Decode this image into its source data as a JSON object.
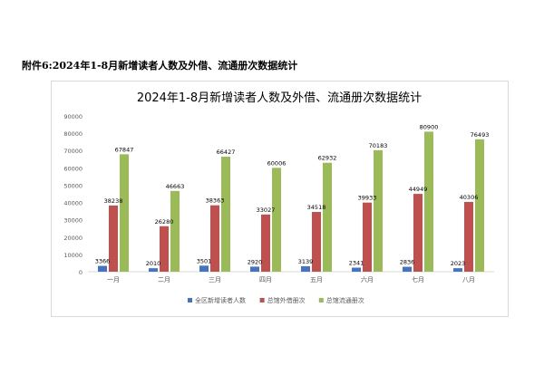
{
  "caption": "附件6:2024年1-8月新增读者人数及外借、流通册次数据统计",
  "chart_data": {
    "type": "bar",
    "title": "2024年1-8月新增读者人数及外借、流通册次数据统计",
    "categories": [
      "一月",
      "二月",
      "三月",
      "四月",
      "五月",
      "六月",
      "七月",
      "八月"
    ],
    "series": [
      {
        "name": "全区新增读者人数",
        "color": "#4472c4",
        "values": [
          3366,
          2010,
          3501,
          2920,
          3139,
          2341,
          2836,
          2023
        ]
      },
      {
        "name": "总馆外借册次",
        "color": "#c0504d",
        "values": [
          38238,
          26280,
          38363,
          33027,
          34518,
          39933,
          44949,
          40306
        ]
      },
      {
        "name": "总馆流通册次",
        "color": "#9bbb59",
        "values": [
          67847,
          46663,
          66427,
          60006,
          62932,
          70183,
          80900,
          76493
        ]
      }
    ],
    "yticks": [
      0,
      10000,
      20000,
      30000,
      40000,
      50000,
      60000,
      70000,
      80000,
      90000
    ],
    "ylim": [
      0,
      90000
    ],
    "legend_position": "bottom",
    "grid": false,
    "data_labels": true
  }
}
